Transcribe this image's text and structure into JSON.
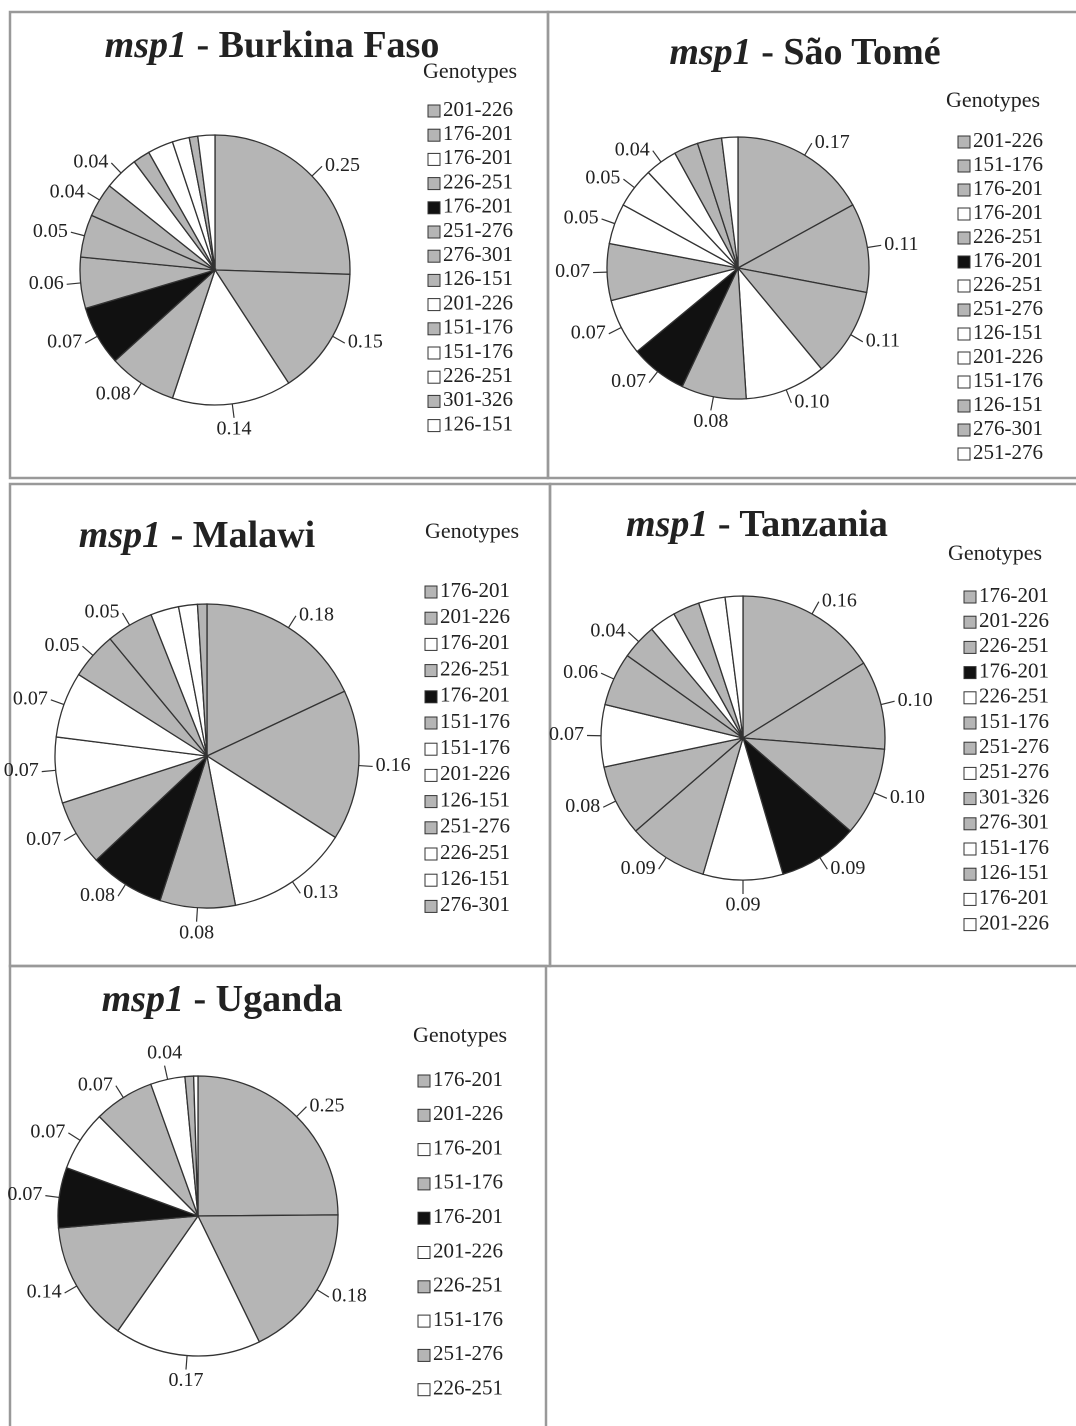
{
  "chart_data": [
    {
      "type": "pie",
      "title": [
        "msp1",
        "- Burkina Faso"
      ],
      "legend_title": "Genotypes",
      "categories": [
        "201-226",
        "176-201",
        "176-201",
        "226-251",
        "176-201",
        "251-276",
        "276-301",
        "126-151",
        "201-226",
        "151-176",
        "151-176",
        "226-251",
        "301-326",
        "126-151"
      ],
      "values": [
        0.25,
        0.15,
        0.14,
        0.08,
        0.07,
        0.06,
        0.05,
        0.04,
        0.04,
        0.02,
        0.03,
        0.02,
        0.01,
        0.02
      ],
      "value_labels": [
        "0.25",
        "0.15",
        "0.14",
        "0.08",
        "0.07",
        "0.06",
        "0.05",
        "0.04",
        "0.04",
        null,
        null,
        null,
        null,
        null
      ],
      "colors": [
        "#b5b5b5",
        "#b5b5b5",
        "#ffffff",
        "#b5b5b5",
        "#111111",
        "#b5b5b5",
        "#b5b5b5",
        "#b5b5b5",
        "#ffffff",
        "#b5b5b5",
        "#ffffff",
        "#ffffff",
        "#b5b5b5",
        "#ffffff"
      ]
    },
    {
      "type": "pie",
      "title": [
        "msp1",
        "- São Tomé"
      ],
      "legend_title": "Genotypes",
      "categories": [
        "201-226",
        "151-176",
        "176-201",
        "176-201",
        "226-251",
        "176-201",
        "226-251",
        "251-276",
        "126-151",
        "201-226",
        "151-176",
        "126-151",
        "276-301",
        "251-276"
      ],
      "values": [
        0.17,
        0.11,
        0.11,
        0.1,
        0.08,
        0.07,
        0.07,
        0.07,
        0.05,
        0.05,
        0.04,
        0.03,
        0.03,
        0.02
      ],
      "value_labels": [
        "0.17",
        "0.11",
        "0.11",
        "0.10",
        "0.08",
        "0.07",
        "0.07",
        "0.07",
        "0.05",
        "0.05",
        "0.04",
        null,
        null,
        null
      ],
      "colors": [
        "#b5b5b5",
        "#b5b5b5",
        "#b5b5b5",
        "#ffffff",
        "#b5b5b5",
        "#111111",
        "#ffffff",
        "#b5b5b5",
        "#ffffff",
        "#ffffff",
        "#ffffff",
        "#b5b5b5",
        "#b5b5b5",
        "#ffffff"
      ]
    },
    {
      "type": "pie",
      "title": [
        "msp1",
        "- Malawi"
      ],
      "legend_title": "Genotypes",
      "categories": [
        "176-201",
        "201-226",
        "176-201",
        "226-251",
        "176-201",
        "151-176",
        "151-176",
        "201-226",
        "126-151",
        "251-276",
        "226-251",
        "126-151",
        "276-301"
      ],
      "values": [
        0.18,
        0.16,
        0.13,
        0.08,
        0.08,
        0.07,
        0.07,
        0.07,
        0.05,
        0.05,
        0.03,
        0.02,
        0.01
      ],
      "value_labels": [
        "0.18",
        "0.16",
        "0.13",
        "0.08",
        "0.08",
        "0.07",
        "0.07",
        "0.07",
        "0.05",
        "0.05",
        null,
        null,
        null
      ],
      "colors": [
        "#b5b5b5",
        "#b5b5b5",
        "#ffffff",
        "#b5b5b5",
        "#111111",
        "#b5b5b5",
        "#ffffff",
        "#ffffff",
        "#b5b5b5",
        "#b5b5b5",
        "#ffffff",
        "#ffffff",
        "#b5b5b5"
      ]
    },
    {
      "type": "pie",
      "title": [
        "msp1",
        "- Tanzania"
      ],
      "legend_title": "Genotypes",
      "categories": [
        "176-201",
        "201-226",
        "226-251",
        "176-201",
        "226-251",
        "151-176",
        "251-276",
        "251-276",
        "301-326",
        "276-301",
        "151-176",
        "126-151",
        "176-201",
        "201-226"
      ],
      "values": [
        0.16,
        0.1,
        0.1,
        0.09,
        0.09,
        0.09,
        0.08,
        0.07,
        0.06,
        0.04,
        0.03,
        0.03,
        0.03,
        0.02
      ],
      "value_labels": [
        "0.16",
        "0.10",
        "0.10",
        "0.09",
        "0.09",
        "0.09",
        "0.08",
        "0.07",
        "0.06",
        "0.04",
        null,
        null,
        null,
        null
      ],
      "colors": [
        "#b5b5b5",
        "#b5b5b5",
        "#b5b5b5",
        "#111111",
        "#ffffff",
        "#b5b5b5",
        "#b5b5b5",
        "#ffffff",
        "#b5b5b5",
        "#b5b5b5",
        "#ffffff",
        "#b5b5b5",
        "#ffffff",
        "#ffffff"
      ]
    },
    {
      "type": "pie",
      "title": [
        "msp1",
        "- Uganda"
      ],
      "legend_title": "Genotypes",
      "categories": [
        "176-201",
        "201-226",
        "176-201",
        "151-176",
        "176-201",
        "201-226",
        "226-251",
        "151-176",
        "251-276",
        "226-251"
      ],
      "values": [
        0.25,
        0.18,
        0.17,
        0.14,
        0.07,
        0.07,
        0.07,
        0.04,
        0.01,
        0.005
      ],
      "value_labels": [
        "0.25",
        "0.18",
        "0.17",
        "0.14",
        "0.07",
        "0.07",
        "0.07",
        "0.04",
        null,
        null
      ],
      "colors": [
        "#b5b5b5",
        "#b5b5b5",
        "#ffffff",
        "#b5b5b5",
        "#111111",
        "#ffffff",
        "#b5b5b5",
        "#ffffff",
        "#b5b5b5",
        "#ffffff"
      ]
    }
  ]
}
